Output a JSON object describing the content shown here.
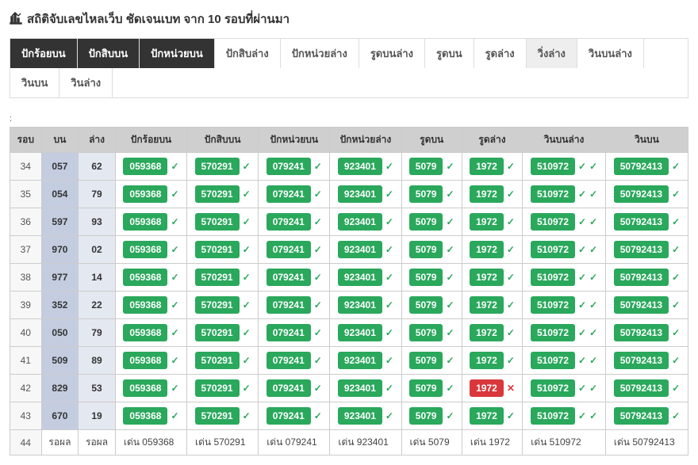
{
  "title": "สถิติจับเลขไหลเว็บ ชัดเจนเบท จาก 10 รอบที่ผ่านมา",
  "tabs": [
    {
      "label": "ปักร้อยบน",
      "style": "dark"
    },
    {
      "label": "ปักสิบบน",
      "style": "dark"
    },
    {
      "label": "ปักหน่วยบน",
      "style": "dark"
    },
    {
      "label": "ปักสิบล่าง",
      "style": "light"
    },
    {
      "label": "ปักหน่วยล่าง",
      "style": "light"
    },
    {
      "label": "รูดบนล่าง",
      "style": "light"
    },
    {
      "label": "รูดบน",
      "style": "light"
    },
    {
      "label": "รูดล่าง",
      "style": "light"
    },
    {
      "label": "วิ่งล่าง",
      "style": "active-light"
    },
    {
      "label": "วินบนล่าง",
      "style": "light"
    },
    {
      "label": "วินบน",
      "style": "light"
    },
    {
      "label": "วินล่าง",
      "style": "light"
    }
  ],
  "headers": [
    "รอบ",
    "บน",
    "ล่าง",
    "ปักร้อยบน",
    "ปักสิบบน",
    "ปักหน่วยบน",
    "ปักหน่วยล่าง",
    "รูดบน",
    "รูดล่าง",
    "วินบนล่าง",
    "วินบน"
  ],
  "valueCols": [
    {
      "value": "059368"
    },
    {
      "value": "570291"
    },
    {
      "value": "079241"
    },
    {
      "value": "923401"
    },
    {
      "value": "5079"
    },
    {
      "value": "1972"
    },
    {
      "value": "510972",
      "marks": 2
    },
    {
      "value": "50792413"
    }
  ],
  "rows": [
    {
      "idx": "34",
      "bon": "057",
      "lang": "62",
      "type": "normal"
    },
    {
      "idx": "35",
      "bon": "054",
      "lang": "79",
      "type": "normal"
    },
    {
      "idx": "36",
      "bon": "597",
      "lang": "93",
      "type": "normal"
    },
    {
      "idx": "37",
      "bon": "970",
      "lang": "02",
      "type": "normal"
    },
    {
      "idx": "38",
      "bon": "977",
      "lang": "14",
      "type": "normal"
    },
    {
      "idx": "39",
      "bon": "352",
      "lang": "22",
      "type": "normal"
    },
    {
      "idx": "40",
      "bon": "050",
      "lang": "79",
      "type": "normal"
    },
    {
      "idx": "41",
      "bon": "509",
      "lang": "89",
      "type": "normal"
    },
    {
      "idx": "42",
      "bon": "829",
      "lang": "53",
      "type": "normal",
      "redCols": [
        5
      ]
    },
    {
      "idx": "43",
      "bon": "670",
      "lang": "19",
      "type": "normal"
    },
    {
      "idx": "44",
      "bon": "รอผล",
      "lang": "รอผล",
      "type": "pending"
    }
  ],
  "pendingPrefix": "เด่น"
}
